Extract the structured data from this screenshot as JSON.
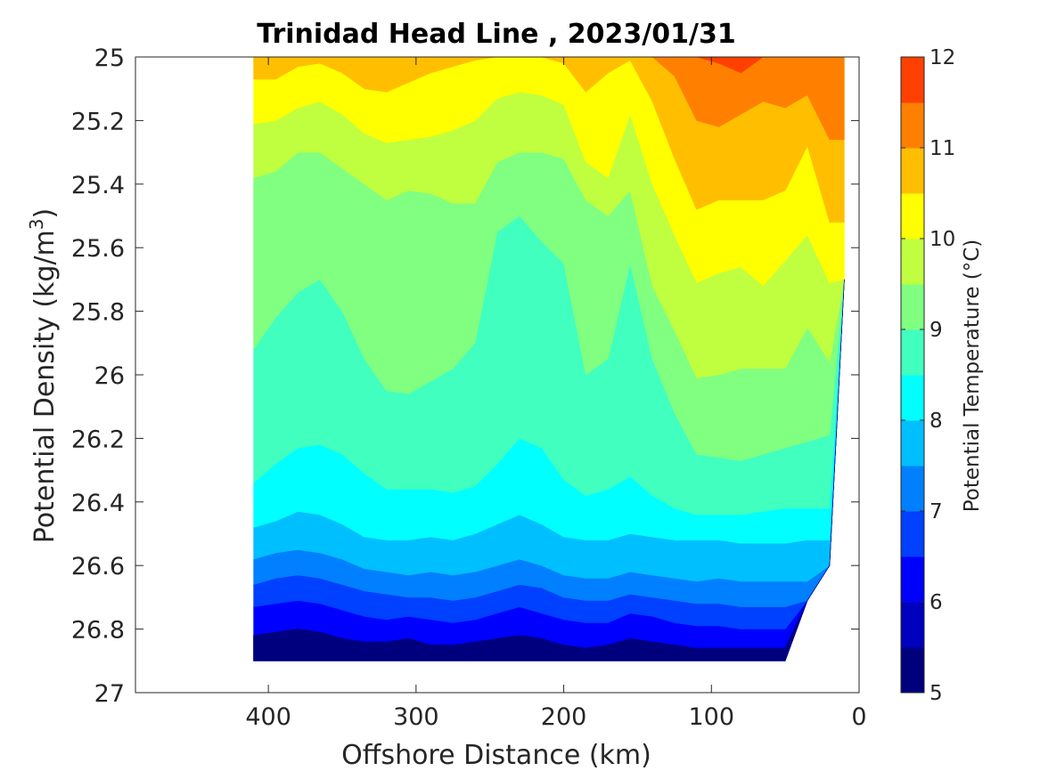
{
  "chart_data": {
    "type": "contour",
    "title": "Trinidad Head Line , 2023/01/31",
    "xlabel": "Offshore Distance (km)",
    "ylabel": "Potential Density (kg/m",
    "ylabel_sup": "3",
    "ylabel_close": ")",
    "colorbar_label": "Potential Temperature (°C)",
    "x_reversed": true,
    "y_reversed": true,
    "xlim": [
      0,
      490
    ],
    "ylim": [
      25,
      27
    ],
    "x_ticks": [
      400,
      300,
      200,
      100,
      0
    ],
    "y_ticks": [
      25,
      25.2,
      25.4,
      25.6,
      25.8,
      26,
      26.2,
      26.4,
      26.6,
      26.8,
      27
    ],
    "x_tick_labels": [
      "400",
      "300",
      "200",
      "100",
      "0"
    ],
    "y_tick_labels": [
      "25",
      "25.2",
      "25.4",
      "25.6",
      "25.8",
      "26",
      "26.2",
      "26.4",
      "26.6",
      "26.8",
      "27"
    ],
    "colorbar_ticks": [
      5,
      6,
      7,
      8,
      9,
      10,
      11,
      12
    ],
    "colorbar_tick_labels": [
      "5",
      "6",
      "7",
      "8",
      "9",
      "10",
      "11",
      "12"
    ],
    "levels": [
      5,
      5.5,
      6,
      6.5,
      7,
      7.5,
      8,
      8.5,
      9,
      9.5,
      10,
      10.5,
      11,
      11.5,
      12
    ],
    "level_colors": [
      "#00007f",
      "#0000bf",
      "#0000ff",
      "#0040ff",
      "#0080ff",
      "#00bfff",
      "#00ffff",
      "#40ffbf",
      "#80ff80",
      "#bfff40",
      "#ffff00",
      "#ffbf00",
      "#ff8000",
      "#ff4000",
      "#ff0000",
      "#bf0000"
    ],
    "x_stations": [
      410,
      395,
      380,
      365,
      350,
      335,
      320,
      305,
      290,
      275,
      260,
      245,
      230,
      215,
      200,
      185,
      170,
      155,
      140,
      125,
      110,
      95,
      80,
      65,
      50,
      35,
      20,
      10
    ],
    "isolines": [
      {
        "level": 5.5,
        "y": [
          26.82,
          26.81,
          26.8,
          26.81,
          26.83,
          26.84,
          26.84,
          26.83,
          26.85,
          26.85,
          26.84,
          26.83,
          26.82,
          26.83,
          26.85,
          26.86,
          26.85,
          26.83,
          26.84,
          26.85,
          26.86,
          26.86,
          26.86,
          26.86,
          26.86,
          26.86,
          26.86,
          26.86
        ]
      },
      {
        "level": 6.0,
        "y": [
          26.73,
          26.72,
          26.71,
          26.72,
          26.74,
          26.76,
          26.77,
          26.76,
          26.77,
          26.78,
          26.77,
          26.75,
          26.73,
          26.75,
          26.77,
          26.78,
          26.78,
          26.75,
          26.76,
          26.78,
          26.79,
          26.79,
          26.8,
          26.8,
          26.8,
          26.8,
          26.8,
          26.8
        ]
      },
      {
        "level": 6.5,
        "y": [
          26.66,
          26.64,
          26.63,
          26.64,
          26.66,
          26.68,
          26.69,
          26.7,
          26.7,
          26.71,
          26.7,
          26.68,
          26.66,
          26.67,
          26.7,
          26.71,
          26.71,
          26.69,
          26.7,
          26.71,
          26.72,
          26.72,
          26.73,
          26.73,
          26.73,
          26.73,
          26.73,
          26.73
        ]
      },
      {
        "level": 7.0,
        "y": [
          26.58,
          26.56,
          26.55,
          26.56,
          26.58,
          26.61,
          26.62,
          26.63,
          26.62,
          26.63,
          26.62,
          26.6,
          26.58,
          26.6,
          26.63,
          26.64,
          26.64,
          26.62,
          26.63,
          26.64,
          26.65,
          26.64,
          26.65,
          26.65,
          26.65,
          26.65,
          26.65,
          26.65
        ]
      },
      {
        "level": 7.5,
        "y": [
          26.48,
          26.46,
          26.43,
          26.44,
          26.47,
          26.51,
          26.52,
          26.52,
          26.51,
          26.52,
          26.5,
          26.47,
          26.44,
          26.47,
          26.51,
          26.52,
          26.52,
          26.5,
          26.51,
          26.52,
          26.52,
          26.52,
          26.53,
          26.53,
          26.53,
          26.52,
          26.52,
          26.52
        ]
      },
      {
        "level": 8.0,
        "y": [
          26.34,
          26.28,
          26.23,
          26.22,
          26.25,
          26.31,
          26.36,
          26.36,
          26.36,
          26.37,
          26.35,
          26.28,
          26.2,
          26.23,
          26.33,
          26.38,
          26.36,
          26.32,
          26.38,
          26.42,
          26.44,
          26.44,
          26.44,
          26.43,
          26.42,
          26.42,
          26.42,
          26.42
        ]
      },
      {
        "level": 8.5,
        "y": [
          25.92,
          25.82,
          25.74,
          25.7,
          25.8,
          25.95,
          26.05,
          26.06,
          26.02,
          25.98,
          25.9,
          25.55,
          25.5,
          25.58,
          25.65,
          26.0,
          25.95,
          25.65,
          25.95,
          26.12,
          26.25,
          26.26,
          26.27,
          26.25,
          26.23,
          26.21,
          26.19,
          26.19
        ]
      },
      {
        "level": 9.0,
        "y": [
          25.38,
          25.36,
          25.3,
          25.3,
          25.35,
          25.4,
          25.45,
          25.42,
          25.43,
          25.46,
          25.46,
          25.33,
          25.3,
          25.3,
          25.32,
          25.45,
          25.5,
          25.42,
          25.72,
          25.86,
          26.01,
          26.0,
          25.98,
          25.98,
          25.98,
          25.85,
          25.96,
          25.96
        ]
      },
      {
        "level": 9.5,
        "y": [
          25.21,
          25.2,
          25.16,
          25.14,
          25.18,
          25.24,
          25.27,
          25.26,
          25.25,
          25.23,
          25.2,
          25.13,
          25.11,
          25.12,
          25.15,
          25.33,
          25.38,
          25.18,
          25.4,
          25.56,
          25.71,
          25.68,
          25.66,
          25.72,
          25.64,
          25.56,
          25.71,
          25.71
        ]
      },
      {
        "level": 10.0,
        "y": [
          25.07,
          25.07,
          25.03,
          25.02,
          25.05,
          25.1,
          25.11,
          25.08,
          25.05,
          25.03,
          25.01,
          25.0,
          25.0,
          25.0,
          25.02,
          25.11,
          25.05,
          25.01,
          25.14,
          25.32,
          25.48,
          25.45,
          25.45,
          25.45,
          25.42,
          25.28,
          25.52,
          25.52
        ]
      },
      {
        "level": 10.5,
        "y": [
          25.0,
          25.0,
          25.0,
          25.0,
          25.0,
          25.0,
          25.0,
          25.0,
          25.0,
          25.0,
          25.0,
          25.0,
          25.0,
          25.0,
          25.0,
          25.0,
          25.0,
          25.0,
          25.0,
          25.06,
          25.2,
          25.22,
          25.18,
          25.14,
          25.16,
          25.12,
          25.26,
          25.26
        ]
      },
      {
        "level": 11.0,
        "y": [
          25.0,
          25.0,
          25.0,
          25.0,
          25.0,
          25.0,
          25.0,
          25.0,
          25.0,
          25.0,
          25.0,
          25.0,
          25.0,
          25.0,
          25.0,
          25.0,
          25.0,
          25.0,
          25.0,
          25.0,
          25.0,
          25.02,
          25.05,
          25.0,
          25.0,
          25.0,
          25.0,
          25.0
        ]
      }
    ],
    "bottom_y": [
      26.9,
      26.9,
      26.9,
      26.9,
      26.9,
      26.9,
      26.9,
      26.9,
      26.9,
      26.9,
      26.9,
      26.9,
      26.9,
      26.9,
      26.9,
      26.9,
      26.9,
      26.9,
      26.9,
      26.9,
      26.9,
      26.9,
      26.9,
      26.9,
      26.9,
      26.71,
      26.6,
      25.7
    ]
  }
}
